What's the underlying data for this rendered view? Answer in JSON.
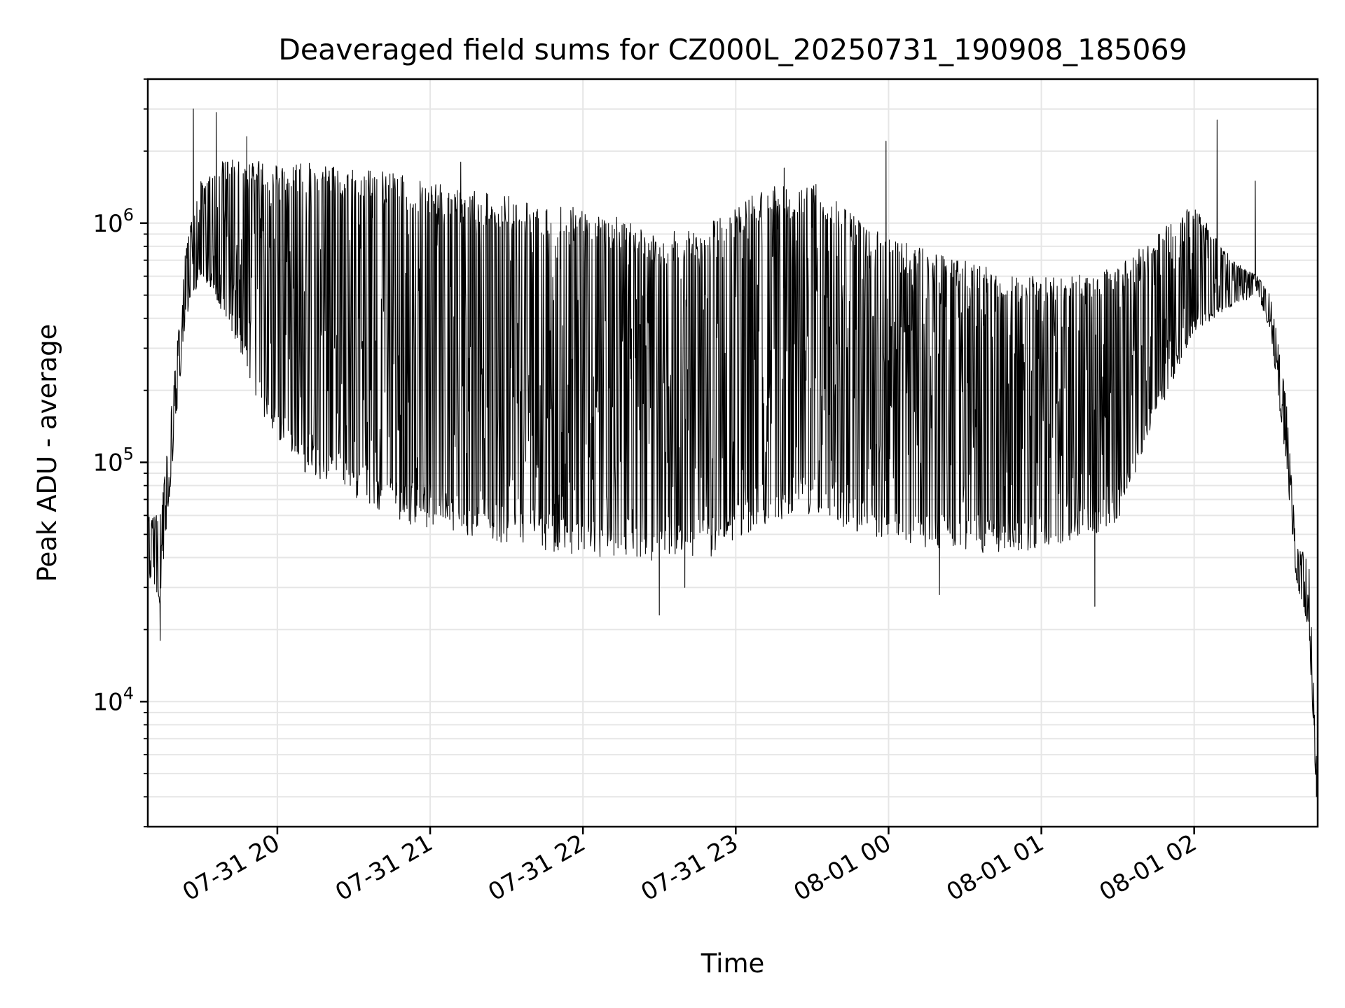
{
  "chart_data": {
    "type": "line",
    "title": "Deaveraged field sums for CZ000L_20250731_190908_185069",
    "xlabel": "Time",
    "ylabel": "Peak ADU - average",
    "x_range": [
      "2025-07-31 19:09:08",
      "2025-08-01 02:48:30"
    ],
    "x_ticks": [
      {
        "value": "2025-07-31 20:00",
        "label": "07-31 20"
      },
      {
        "value": "2025-07-31 21:00",
        "label": "07-31 21"
      },
      {
        "value": "2025-07-31 22:00",
        "label": "07-31 22"
      },
      {
        "value": "2025-07-31 23:00",
        "label": "07-31 23"
      },
      {
        "value": "2025-08-01 00:00",
        "label": "08-01 00"
      },
      {
        "value": "2025-08-01 01:00",
        "label": "08-01 01"
      },
      {
        "value": "2025-08-01 02:00",
        "label": "08-01 02"
      }
    ],
    "y_scale": "log",
    "ylim": [
      3000,
      4000000
    ],
    "y_ticks": [
      {
        "value": 10000,
        "base": "10",
        "exp": "4"
      },
      {
        "value": 100000,
        "base": "10",
        "exp": "5"
      },
      {
        "value": 1000000,
        "base": "10",
        "exp": "6"
      }
    ],
    "grid": true,
    "line_color": "#000000",
    "series": [
      {
        "profile": {
          "x": [
            "2025-07-31 19:09",
            "2025-07-31 19:14",
            "2025-07-31 19:18",
            "2025-07-31 19:24",
            "2025-07-31 19:30",
            "2025-07-31 19:40",
            "2025-07-31 19:55",
            "2025-07-31 20:10",
            "2025-07-31 20:30",
            "2025-07-31 20:50",
            "2025-07-31 21:10",
            "2025-07-31 21:30",
            "2025-07-31 21:50",
            "2025-07-31 22:10",
            "2025-07-31 22:30",
            "2025-07-31 22:50",
            "2025-07-31 23:10",
            "2025-07-31 23:30",
            "2025-07-31 23:50",
            "2025-08-01 00:10",
            "2025-08-01 00:30",
            "2025-08-01 00:50",
            "2025-08-01 01:10",
            "2025-08-01 01:30",
            "2025-08-01 01:45",
            "2025-08-01 02:00",
            "2025-08-01 02:15",
            "2025-08-01 02:25",
            "2025-08-01 02:30",
            "2025-08-01 02:36",
            "2025-08-01 02:40",
            "2025-08-01 02:45",
            "2025-08-01 02:48"
          ],
          "upper": [
            60000,
            60000,
            150000,
            800000,
            1500000,
            1900000,
            1800000,
            1800000,
            1700000,
            1600000,
            1400000,
            1300000,
            1200000,
            1100000,
            900000,
            1000000,
            1400000,
            1500000,
            1000000,
            800000,
            700000,
            600000,
            600000,
            650000,
            900000,
            1200000,
            700000,
            600000,
            500000,
            200000,
            45000,
            40000,
            6000
          ],
          "lower": [
            35000,
            25000,
            80000,
            400000,
            600000,
            400000,
            150000,
            90000,
            70000,
            55000,
            50000,
            45000,
            42000,
            40000,
            38000,
            40000,
            55000,
            60000,
            50000,
            45000,
            42000,
            42000,
            45000,
            55000,
            150000,
            350000,
            450000,
            500000,
            350000,
            100000,
            32000,
            20000,
            4000
          ]
        },
        "min_points": {
          "x": [
            "2025-07-31 19:14",
            "2025-07-31 22:30",
            "2025-07-31 22:40",
            "2025-08-01 00:20",
            "2025-08-01 01:21",
            "2025-08-01 02:48"
          ],
          "y": [
            18000,
            23000,
            30000,
            28000,
            25000,
            4000
          ]
        },
        "max_points": {
          "x": [
            "2025-07-31 19:27",
            "2025-07-31 19:36",
            "2025-07-31 19:48",
            "2025-07-31 21:12",
            "2025-07-31 23:19",
            "2025-07-31 23:59",
            "2025-08-01 02:09",
            "2025-08-01 02:24"
          ],
          "y": [
            3000000,
            2900000,
            2300000,
            1800000,
            1700000,
            2200000,
            2700000,
            1500000
          ]
        }
      }
    ]
  }
}
